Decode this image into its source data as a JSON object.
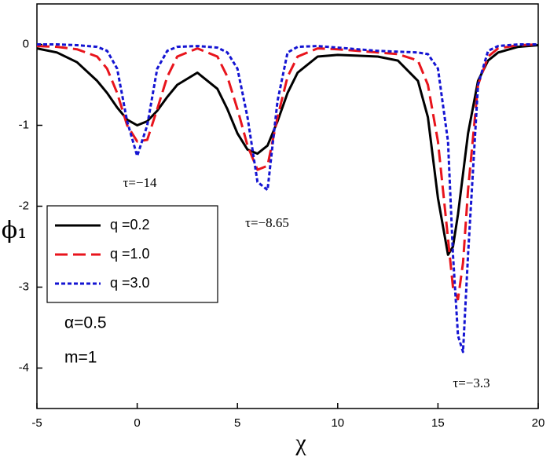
{
  "chart_data": {
    "type": "line",
    "xlabel": "χ",
    "ylabel": "ϕ₁",
    "x": [
      -5,
      -4,
      -3,
      -2,
      -1.5,
      -1,
      -0.5,
      0,
      0.5,
      1,
      1.5,
      2,
      3,
      4,
      4.5,
      5,
      5.5,
      6,
      6.5,
      7,
      7.5,
      8,
      9,
      10,
      11,
      12,
      13,
      14,
      14.5,
      15,
      15.5,
      15.75,
      16,
      16.25,
      16.5,
      17,
      17.5,
      18,
      19,
      20
    ],
    "series": [
      {
        "name": "q =0.2",
        "color": "#000000",
        "linestyle": "solid",
        "values": [
          -0.05,
          -0.1,
          -0.22,
          -0.45,
          -0.6,
          -0.78,
          -0.93,
          -1.0,
          -0.95,
          -0.82,
          -0.65,
          -0.5,
          -0.35,
          -0.55,
          -0.8,
          -1.1,
          -1.3,
          -1.35,
          -1.25,
          -0.95,
          -0.6,
          -0.35,
          -0.15,
          -0.13,
          -0.14,
          -0.15,
          -0.2,
          -0.45,
          -0.9,
          -1.9,
          -2.6,
          -2.5,
          -2.1,
          -1.6,
          -1.1,
          -0.45,
          -0.2,
          -0.1,
          -0.03,
          -0.01
        ]
      },
      {
        "name": "q =1.0",
        "color": "#e8141c",
        "linestyle": "dashed",
        "values": [
          -0.02,
          -0.03,
          -0.06,
          -0.15,
          -0.3,
          -0.6,
          -1.0,
          -1.2,
          -1.18,
          -0.8,
          -0.4,
          -0.15,
          -0.05,
          -0.15,
          -0.4,
          -0.8,
          -1.25,
          -1.55,
          -1.5,
          -0.9,
          -0.4,
          -0.15,
          -0.05,
          -0.06,
          -0.08,
          -0.1,
          -0.12,
          -0.2,
          -0.5,
          -1.2,
          -2.4,
          -3.0,
          -3.15,
          -2.7,
          -1.8,
          -0.5,
          -0.15,
          -0.05,
          -0.01,
          0
        ]
      },
      {
        "name": "q =3.0",
        "color": "#1414d2",
        "linestyle": "dotted",
        "values": [
          0,
          0,
          -0.01,
          -0.03,
          -0.08,
          -0.3,
          -0.95,
          -1.38,
          -1.0,
          -0.3,
          -0.08,
          -0.03,
          -0.02,
          -0.04,
          -0.1,
          -0.3,
          -0.9,
          -1.7,
          -1.8,
          -0.7,
          -0.1,
          -0.03,
          -0.02,
          -0.04,
          -0.06,
          -0.08,
          -0.09,
          -0.1,
          -0.12,
          -0.3,
          -1.2,
          -2.6,
          -3.6,
          -3.8,
          -2.6,
          -0.5,
          -0.08,
          -0.02,
          0,
          0
        ]
      }
    ],
    "xlim": [
      -5,
      20
    ],
    "xticks": [
      -5,
      0,
      5,
      10,
      15,
      20
    ],
    "ylim": [
      -4.5,
      0.5
    ],
    "yticks": [
      0,
      -1,
      -2,
      -3,
      -4
    ],
    "legend": "center left",
    "annotations": [
      "τ=−14",
      "τ=−8.65",
      "τ=−3.3"
    ],
    "notes": [
      "α=0.5",
      "m=1"
    ]
  }
}
